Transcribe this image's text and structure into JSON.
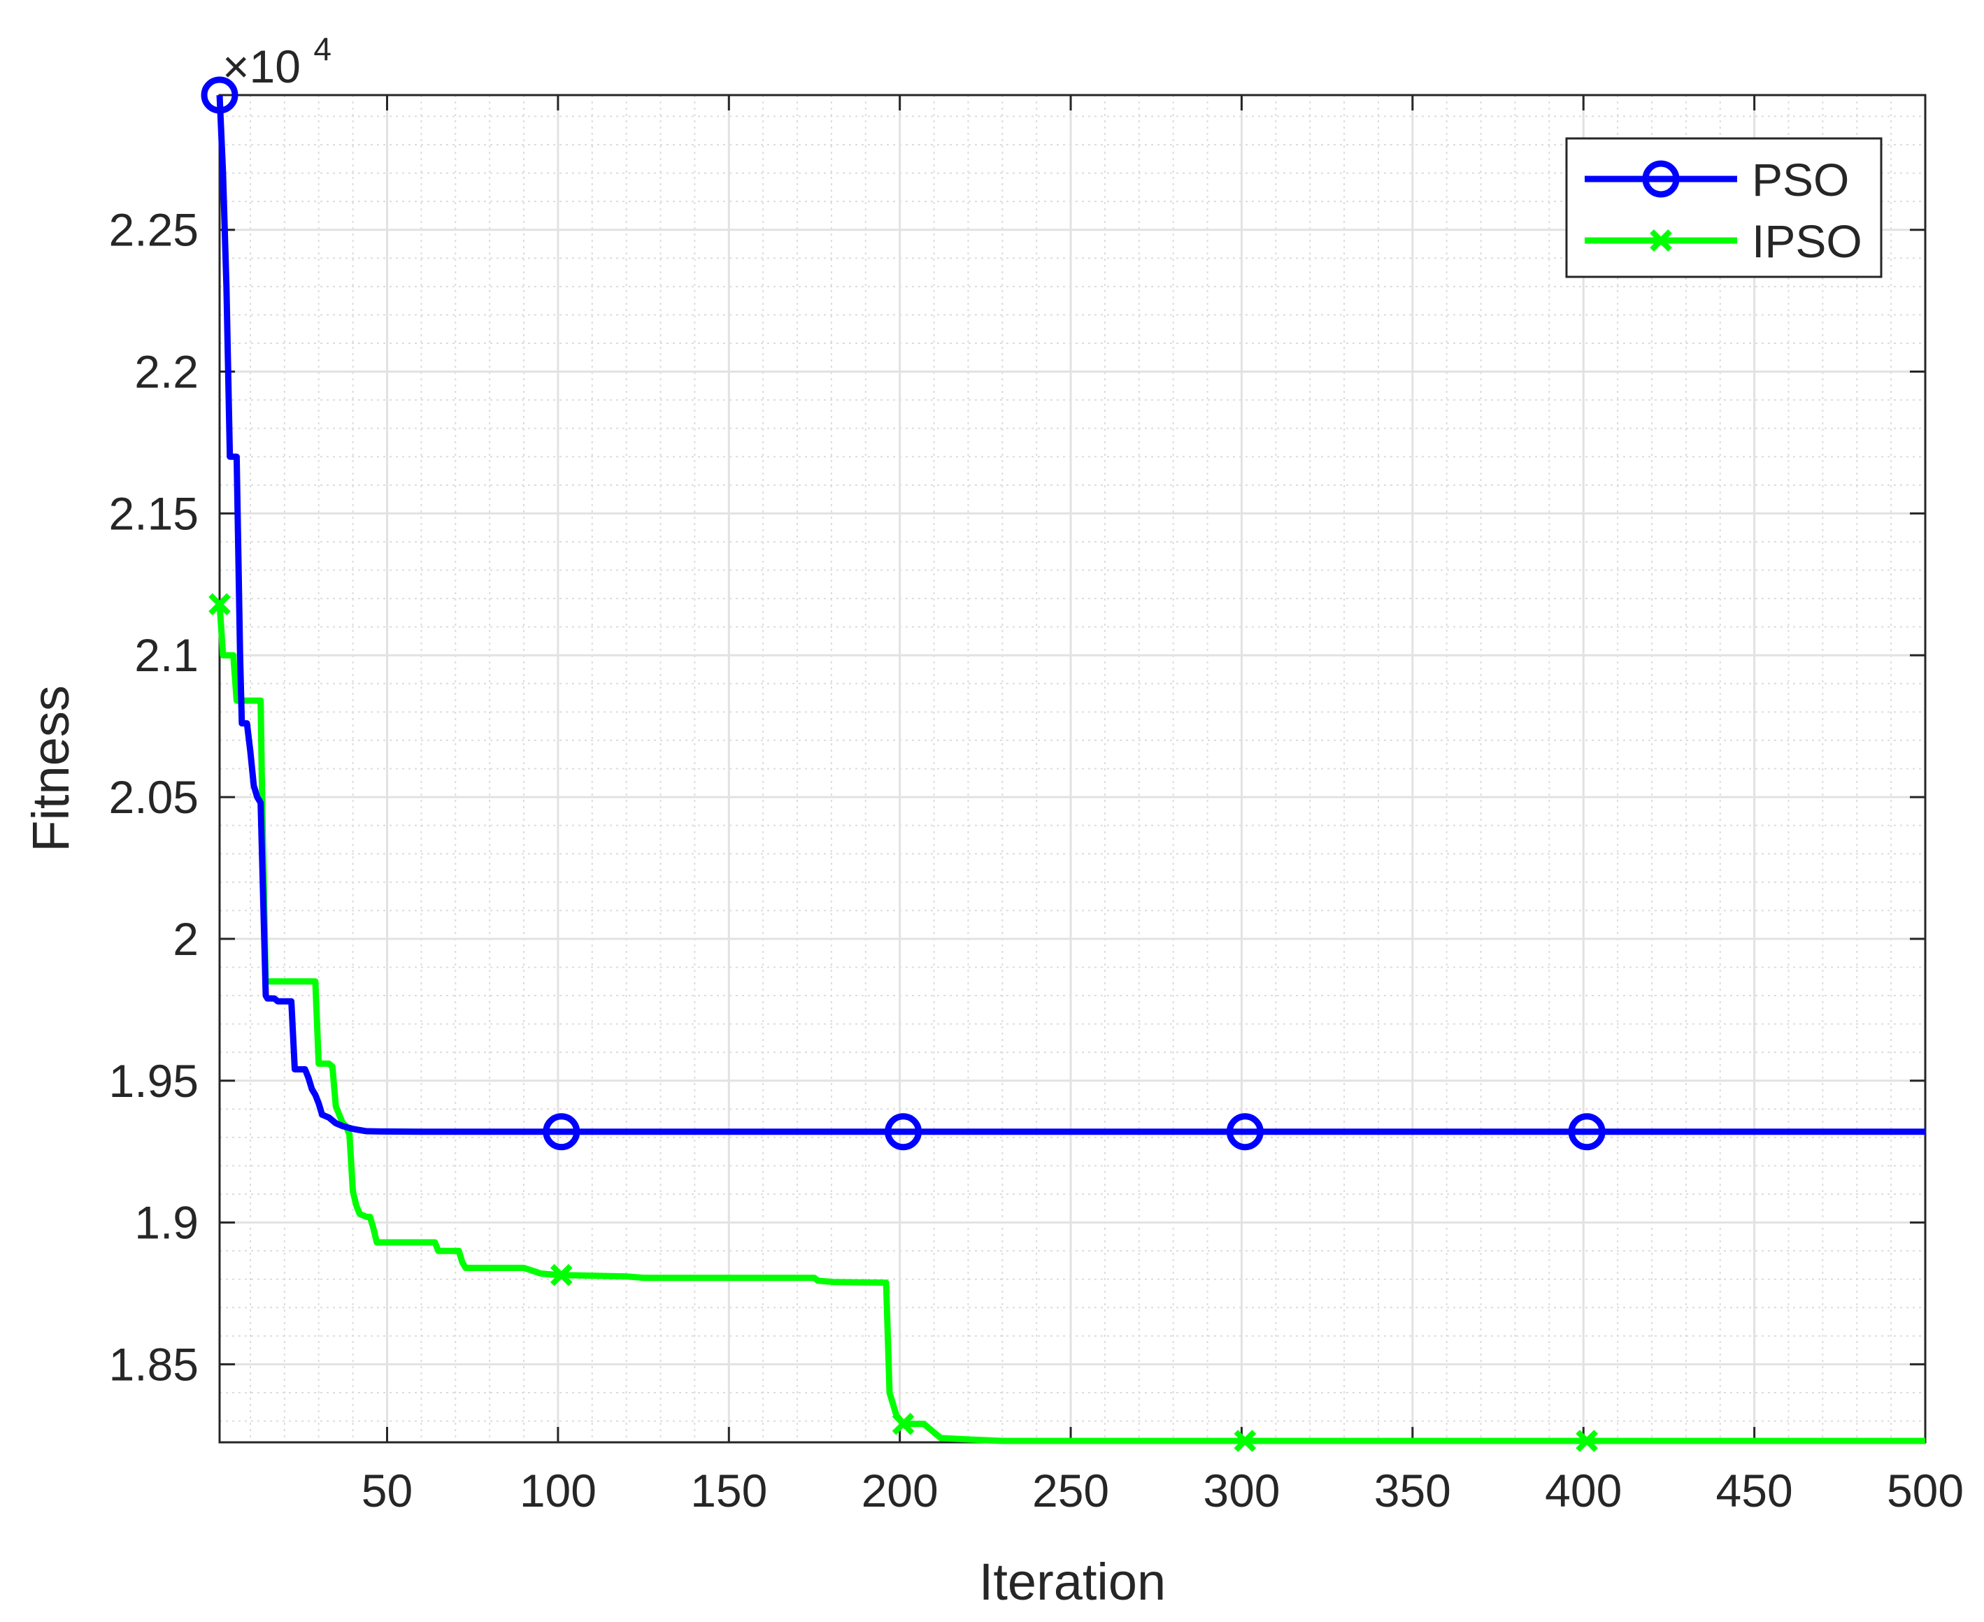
{
  "chart_data": {
    "type": "line",
    "xlabel": "Iteration",
    "ylabel": "Fitness",
    "y_exponent_label": {
      "prefix": "×10",
      "power": "4"
    },
    "xlim": [
      1,
      500
    ],
    "ylim": [
      1.8225,
      2.2975
    ],
    "x_ticks": [
      50,
      100,
      150,
      200,
      250,
      300,
      350,
      400,
      450,
      500
    ],
    "x_tick_labels": [
      "50",
      "100",
      "150",
      "200",
      "250",
      "300",
      "350",
      "400",
      "450",
      "500"
    ],
    "y_ticks": [
      1.85,
      1.9,
      1.95,
      2.0,
      2.05,
      2.1,
      2.15,
      2.2,
      2.25
    ],
    "y_tick_labels": [
      "1.85",
      "1.9",
      "1.95",
      "2",
      "2.05",
      "2.1",
      "2.15",
      "2.2",
      "2.25"
    ],
    "grid": true,
    "minor_grid": true,
    "legend_position": "top-right",
    "series": [
      {
        "name": "PSO",
        "color": "#0000ff",
        "marker": "circle",
        "marker_x": [
          1,
          101,
          201,
          301,
          401
        ],
        "points": [
          [
            1,
            2.2975
          ],
          [
            2,
            2.27
          ],
          [
            3,
            2.23
          ],
          [
            4,
            2.17
          ],
          [
            6,
            2.17
          ],
          [
            7,
            2.1
          ],
          [
            7.5,
            2.076
          ],
          [
            9,
            2.076
          ],
          [
            10,
            2.066
          ],
          [
            11,
            2.054
          ],
          [
            12,
            2.05
          ],
          [
            13,
            2.048
          ],
          [
            14.5,
            1.98
          ],
          [
            15,
            1.979
          ],
          [
            17,
            1.979
          ],
          [
            18,
            1.978
          ],
          [
            22,
            1.978
          ],
          [
            23,
            1.954
          ],
          [
            26,
            1.954
          ],
          [
            27,
            1.951
          ],
          [
            28,
            1.947
          ],
          [
            29,
            1.945
          ],
          [
            30,
            1.942
          ],
          [
            31,
            1.938
          ],
          [
            33,
            1.937
          ],
          [
            35,
            1.935
          ],
          [
            37,
            1.934
          ],
          [
            40,
            1.933
          ],
          [
            44,
            1.9322
          ],
          [
            48,
            1.9321
          ],
          [
            60,
            1.932
          ],
          [
            70,
            1.932
          ],
          [
            500,
            1.932
          ]
        ]
      },
      {
        "name": "IPSO",
        "color": "#00ff00",
        "marker": "x",
        "marker_x": [
          1,
          101,
          201,
          301,
          401
        ],
        "points": [
          [
            1,
            2.118
          ],
          [
            2,
            2.1
          ],
          [
            5,
            2.1
          ],
          [
            6,
            2.084
          ],
          [
            13,
            2.084
          ],
          [
            13.5,
            2.045
          ],
          [
            14.5,
            1.985
          ],
          [
            16,
            1.985
          ],
          [
            29,
            1.985
          ],
          [
            30,
            1.956
          ],
          [
            33,
            1.956
          ],
          [
            34,
            1.955
          ],
          [
            35,
            1.941
          ],
          [
            37,
            1.935
          ],
          [
            38,
            1.934
          ],
          [
            39,
            1.931
          ],
          [
            40,
            1.911
          ],
          [
            41,
            1.906
          ],
          [
            42,
            1.903
          ],
          [
            44,
            1.902
          ],
          [
            45,
            1.902
          ],
          [
            46,
            1.898
          ],
          [
            47,
            1.893
          ],
          [
            64,
            1.893
          ],
          [
            65,
            1.89
          ],
          [
            71,
            1.89
          ],
          [
            72,
            1.886
          ],
          [
            73,
            1.884
          ],
          [
            90,
            1.884
          ],
          [
            95,
            1.882
          ],
          [
            100,
            1.8815
          ],
          [
            120,
            1.881
          ],
          [
            125,
            1.8805
          ],
          [
            175,
            1.8805
          ],
          [
            176,
            1.8795
          ],
          [
            181,
            1.879
          ],
          [
            196,
            1.8788
          ],
          [
            197,
            1.84
          ],
          [
            198,
            1.836
          ],
          [
            199,
            1.832
          ],
          [
            201,
            1.829
          ],
          [
            207,
            1.829
          ],
          [
            212,
            1.824
          ],
          [
            220,
            1.8235
          ],
          [
            230,
            1.823
          ],
          [
            500,
            1.823
          ]
        ]
      }
    ]
  }
}
